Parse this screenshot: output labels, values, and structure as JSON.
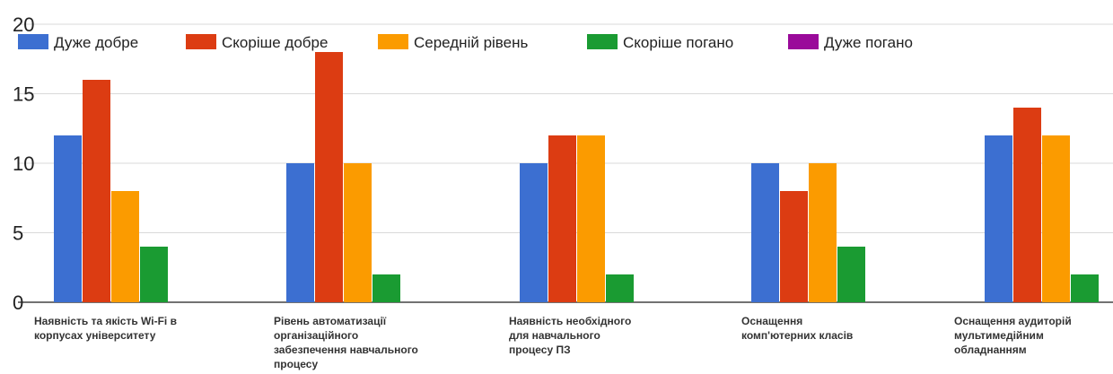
{
  "chart_data": {
    "type": "bar",
    "categories": [
      [
        "Наявність та якість Wi-Fi в",
        "корпусах університету"
      ],
      [
        "Рівень автоматизації",
        "організаційного",
        "забезпечення навчального",
        "процесу"
      ],
      [
        "Наявність необхідного",
        "для навчального",
        "процесу ПЗ"
      ],
      [
        "Оснащення",
        "комп'ютерних класів"
      ],
      [
        "Оснащення аудиторій",
        "мультимедійним",
        "обладнанням"
      ]
    ],
    "series": [
      {
        "name": "Дуже добре",
        "color": "#3c6fd1",
        "values": [
          12,
          10,
          10,
          10,
          12
        ]
      },
      {
        "name": "Скоріше добре",
        "color": "#dc3c12",
        "values": [
          16,
          18,
          12,
          8,
          14
        ]
      },
      {
        "name": "Середній рівень",
        "color": "#fb9b00",
        "values": [
          8,
          10,
          12,
          10,
          12
        ]
      },
      {
        "name": "Скоріше погано",
        "color": "#1a9b32",
        "values": [
          4,
          2,
          2,
          4,
          2
        ]
      },
      {
        "name": "Дуже погано",
        "color": "#9a0a9a",
        "values": [
          0,
          0,
          0,
          0,
          0
        ]
      }
    ],
    "yticks": [
      "0",
      "5",
      "10",
      "15",
      "20"
    ],
    "ylim": [
      0,
      20
    ],
    "grid": true,
    "legend_position": "top"
  }
}
